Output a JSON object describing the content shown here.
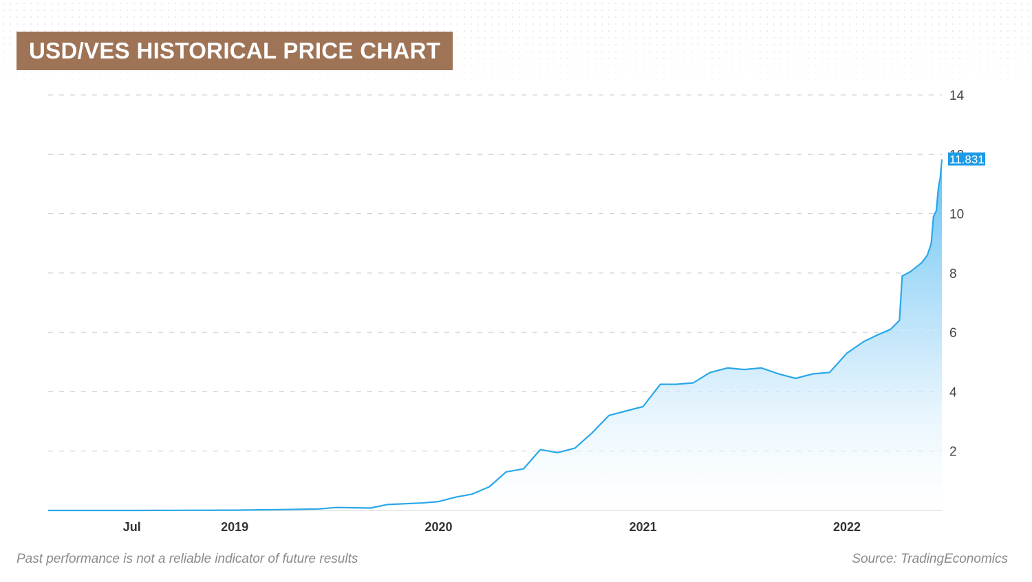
{
  "header": {
    "title": "USD/VES HISTORICAL PRICE CHART"
  },
  "footer": {
    "disclaimer": "Past performance is not a reliable indicator of future results",
    "source": "Source: TradingEconomics"
  },
  "chart_data": {
    "type": "area",
    "title": "USD/VES HISTORICAL PRICE CHART",
    "xlabel": "",
    "ylabel": "",
    "ylim": [
      0,
      14
    ],
    "y_ticks": [
      2,
      4,
      6,
      8,
      10,
      12,
      14
    ],
    "x_ticks": [
      {
        "label": "Jul",
        "date": "2018-07"
      },
      {
        "label": "2019",
        "date": "2019-01"
      },
      {
        "label": "2020",
        "date": "2020-01"
      },
      {
        "label": "2021",
        "date": "2021-01"
      },
      {
        "label": "2022",
        "date": "2022-01"
      }
    ],
    "xlim": [
      "2018-02",
      "2022-06"
    ],
    "grid": true,
    "y_axis_position": "right",
    "last_value_label": "11.831",
    "colors": {
      "line": "#2aa7e8",
      "area_top": "#6ec6f5",
      "label_bg": "#1d9be6"
    },
    "series": [
      {
        "x": [
          "2018-02",
          "2018-07",
          "2019-01",
          "2019-04",
          "2019-06",
          "2019-07",
          "2019-09",
          "2019-10",
          "2019-12",
          "2020-01",
          "2020-02",
          "2020-03",
          "2020-04",
          "2020-05",
          "2020-06",
          "2020-07",
          "2020-08",
          "2020-09",
          "2020-10",
          "2020-11",
          "2020-12",
          "2021-01",
          "2021-02",
          "2021-03",
          "2021-04",
          "2021-05",
          "2021-06",
          "2021-07",
          "2021-08",
          "2021-09",
          "2021-10",
          "2021-11",
          "2021-12",
          "2022-01",
          "2022-02",
          "2022-03",
          "2022-04",
          "2022-05",
          "2022-06"
        ],
        "values": [
          0.0,
          0.0,
          0.01,
          0.03,
          0.05,
          0.1,
          0.08,
          0.2,
          0.25,
          0.3,
          0.45,
          0.55,
          0.8,
          1.3,
          1.4,
          2.05,
          1.95,
          2.1,
          2.6,
          3.2,
          3.35,
          3.5,
          4.25,
          4.25,
          4.3,
          4.65,
          4.8,
          4.75,
          4.8,
          4.6,
          4.45,
          4.6,
          4.65,
          5.3,
          5.7,
          5.95,
          6.3,
          8.1,
          8.3
        ]
      },
      {
        "x": [
          "2022-03-20",
          "2022-04-05",
          "2022-04-10",
          "2022-04-25",
          "2022-05-05",
          "2022-05-15",
          "2022-05-25",
          "2022-06-01",
          "2022-06-05",
          "2022-06-10",
          "2022-06-14",
          "2022-06-17",
          "2022-06-20"
        ],
        "values": [
          6.1,
          6.4,
          7.9,
          8.05,
          8.2,
          8.35,
          8.6,
          9.0,
          9.9,
          10.1,
          10.9,
          11.2,
          11.831
        ]
      }
    ]
  }
}
